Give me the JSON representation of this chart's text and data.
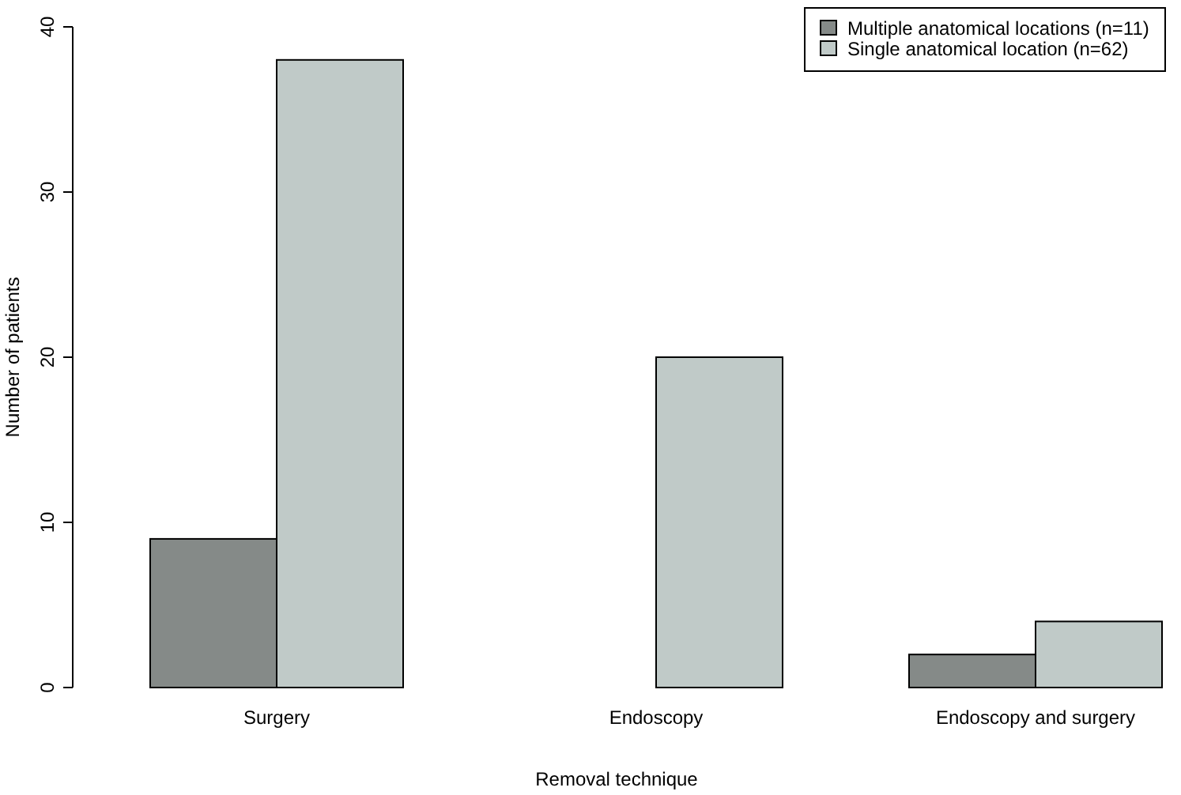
{
  "chart_data": {
    "type": "bar",
    "xlabel": "Removal technique",
    "ylabel": "Number of patients",
    "categories": [
      "Surgery",
      "Endoscopy",
      "Endoscopy and surgery"
    ],
    "series": [
      {
        "name": "Multiple anatomical locations (n=11)",
        "color": "#858a88",
        "values": [
          9,
          0,
          2
        ]
      },
      {
        "name": "Single anatomical location (n=62)",
        "color": "#c0cac8",
        "values": [
          38,
          20,
          4
        ]
      }
    ],
    "ylim": [
      0,
      40
    ],
    "yticks": [
      0,
      10,
      20,
      30,
      40
    ],
    "legend": "top right"
  }
}
